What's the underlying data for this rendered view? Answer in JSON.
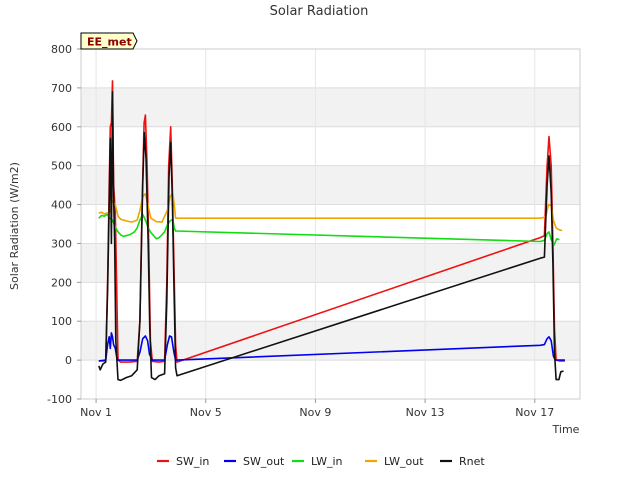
{
  "chart_data": {
    "type": "line",
    "title": "Solar Radiation",
    "xlabel": "Time",
    "ylabel": "Solar Radiation (W/m2)",
    "badge": "EE_met",
    "xlim": [
      0.45,
      18.65
    ],
    "ylim": [
      -100,
      800
    ],
    "x_unit": "day of November",
    "x_ticks": [
      {
        "x": 1,
        "label": "Nov 1"
      },
      {
        "x": 5,
        "label": "Nov 5"
      },
      {
        "x": 9,
        "label": "Nov 9"
      },
      {
        "x": 13,
        "label": "Nov 13"
      },
      {
        "x": 17,
        "label": "Nov 17"
      }
    ],
    "y_ticks": [
      -100,
      0,
      100,
      200,
      300,
      400,
      500,
      600,
      700,
      800
    ],
    "grid": true,
    "legend_position": "bottom",
    "series": [
      {
        "name": "SW_in",
        "color": "#ee1111",
        "points": [
          [
            1.1,
            -2
          ],
          [
            1.35,
            -2
          ],
          [
            1.42,
            200
          ],
          [
            1.48,
            450
          ],
          [
            1.52,
            600
          ],
          [
            1.56,
            610
          ],
          [
            1.6,
            718
          ],
          [
            1.64,
            450
          ],
          [
            1.7,
            380
          ],
          [
            1.75,
            200
          ],
          [
            1.8,
            0
          ],
          [
            1.9,
            -5
          ],
          [
            2.2,
            -5
          ],
          [
            2.5,
            -3
          ],
          [
            2.6,
            100
          ],
          [
            2.68,
            400
          ],
          [
            2.75,
            610
          ],
          [
            2.8,
            630
          ],
          [
            2.86,
            500
          ],
          [
            2.92,
            300
          ],
          [
            2.98,
            50
          ],
          [
            3.05,
            -3
          ],
          [
            3.3,
            -5
          ],
          [
            3.5,
            -3
          ],
          [
            3.58,
            200
          ],
          [
            3.65,
            500
          ],
          [
            3.72,
            600
          ],
          [
            3.78,
            450
          ],
          [
            3.84,
            250
          ],
          [
            3.9,
            40
          ],
          [
            3.95,
            -5
          ],
          [
            17.2,
            315
          ],
          [
            17.35,
            320
          ],
          [
            17.45,
            500
          ],
          [
            17.52,
            575
          ],
          [
            17.6,
            500
          ],
          [
            17.66,
            300
          ],
          [
            17.72,
            80
          ],
          [
            17.78,
            0
          ],
          [
            17.9,
            -2
          ],
          [
            18.1,
            -2
          ]
        ]
      },
      {
        "name": "SW_out",
        "color": "#0000ee",
        "points": [
          [
            1.1,
            -2
          ],
          [
            1.35,
            0
          ],
          [
            1.42,
            40
          ],
          [
            1.48,
            60
          ],
          [
            1.52,
            30
          ],
          [
            1.56,
            70
          ],
          [
            1.6,
            60
          ],
          [
            1.64,
            40
          ],
          [
            1.7,
            30
          ],
          [
            1.75,
            10
          ],
          [
            1.8,
            0
          ],
          [
            2.2,
            0
          ],
          [
            2.5,
            0
          ],
          [
            2.6,
            20
          ],
          [
            2.7,
            55
          ],
          [
            2.8,
            62
          ],
          [
            2.88,
            50
          ],
          [
            2.95,
            15
          ],
          [
            3.05,
            0
          ],
          [
            3.5,
            0
          ],
          [
            3.6,
            40
          ],
          [
            3.68,
            62
          ],
          [
            3.75,
            60
          ],
          [
            3.84,
            20
          ],
          [
            3.9,
            0
          ],
          [
            3.95,
            0
          ],
          [
            17.2,
            38
          ],
          [
            17.35,
            40
          ],
          [
            17.45,
            55
          ],
          [
            17.52,
            60
          ],
          [
            17.6,
            50
          ],
          [
            17.68,
            10
          ],
          [
            17.75,
            0
          ],
          [
            18.1,
            0
          ]
        ]
      },
      {
        "name": "LW_in",
        "color": "#11dd11",
        "points": [
          [
            1.1,
            365
          ],
          [
            1.2,
            372
          ],
          [
            1.3,
            370
          ],
          [
            1.4,
            375
          ],
          [
            1.5,
            365
          ],
          [
            1.6,
            360
          ],
          [
            1.7,
            342
          ],
          [
            1.8,
            330
          ],
          [
            1.9,
            322
          ],
          [
            2.0,
            318
          ],
          [
            2.1,
            320
          ],
          [
            2.2,
            322
          ],
          [
            2.3,
            325
          ],
          [
            2.4,
            330
          ],
          [
            2.5,
            340
          ],
          [
            2.6,
            360
          ],
          [
            2.7,
            375
          ],
          [
            2.8,
            360
          ],
          [
            2.9,
            340
          ],
          [
            3.0,
            328
          ],
          [
            3.1,
            320
          ],
          [
            3.2,
            312
          ],
          [
            3.3,
            315
          ],
          [
            3.4,
            322
          ],
          [
            3.5,
            330
          ],
          [
            3.6,
            348
          ],
          [
            3.7,
            358
          ],
          [
            3.8,
            362
          ],
          [
            3.85,
            340
          ],
          [
            3.9,
            332
          ],
          [
            17.2,
            305
          ],
          [
            17.35,
            308
          ],
          [
            17.45,
            325
          ],
          [
            17.52,
            330
          ],
          [
            17.6,
            310
          ],
          [
            17.7,
            296
          ],
          [
            17.8,
            312
          ],
          [
            17.9,
            310
          ]
        ]
      },
      {
        "name": "LW_out",
        "color": "#f0a500",
        "points": [
          [
            1.1,
            378
          ],
          [
            1.2,
            380
          ],
          [
            1.3,
            376
          ],
          [
            1.4,
            378
          ],
          [
            1.5,
            380
          ],
          [
            1.6,
            410
          ],
          [
            1.7,
            400
          ],
          [
            1.8,
            370
          ],
          [
            1.9,
            362
          ],
          [
            2.1,
            358
          ],
          [
            2.3,
            355
          ],
          [
            2.5,
            360
          ],
          [
            2.6,
            385
          ],
          [
            2.7,
            420
          ],
          [
            2.8,
            428
          ],
          [
            2.9,
            395
          ],
          [
            3.0,
            365
          ],
          [
            3.2,
            356
          ],
          [
            3.4,
            355
          ],
          [
            3.6,
            385
          ],
          [
            3.7,
            420
          ],
          [
            3.8,
            430
          ],
          [
            3.85,
            400
          ],
          [
            3.9,
            365
          ],
          [
            17.2,
            365
          ],
          [
            17.4,
            368
          ],
          [
            17.5,
            400
          ],
          [
            17.6,
            398
          ],
          [
            17.68,
            360
          ],
          [
            17.78,
            340
          ],
          [
            17.9,
            335
          ],
          [
            18.0,
            333
          ]
        ]
      },
      {
        "name": "Rnet",
        "color": "#111111",
        "points": [
          [
            1.1,
            -15
          ],
          [
            1.15,
            -25
          ],
          [
            1.25,
            -10
          ],
          [
            1.35,
            -5
          ],
          [
            1.42,
            180
          ],
          [
            1.48,
            400
          ],
          [
            1.52,
            570
          ],
          [
            1.56,
            300
          ],
          [
            1.6,
            690
          ],
          [
            1.64,
            420
          ],
          [
            1.68,
            300
          ],
          [
            1.72,
            50
          ],
          [
            1.8,
            -50
          ],
          [
            1.9,
            -52
          ],
          [
            2.1,
            -45
          ],
          [
            2.3,
            -40
          ],
          [
            2.5,
            -25
          ],
          [
            2.6,
            100
          ],
          [
            2.7,
            450
          ],
          [
            2.76,
            585
          ],
          [
            2.82,
            520
          ],
          [
            2.9,
            300
          ],
          [
            2.96,
            80
          ],
          [
            3.02,
            -45
          ],
          [
            3.15,
            -50
          ],
          [
            3.3,
            -40
          ],
          [
            3.5,
            -35
          ],
          [
            3.58,
            150
          ],
          [
            3.66,
            470
          ],
          [
            3.72,
            560
          ],
          [
            3.78,
            420
          ],
          [
            3.84,
            200
          ],
          [
            3.9,
            -20
          ],
          [
            3.95,
            -40
          ],
          [
            17.2,
            262
          ],
          [
            17.35,
            265
          ],
          [
            17.45,
            450
          ],
          [
            17.52,
            525
          ],
          [
            17.6,
            430
          ],
          [
            17.66,
            250
          ],
          [
            17.72,
            20
          ],
          [
            17.78,
            -50
          ],
          [
            17.88,
            -50
          ],
          [
            17.95,
            -30
          ],
          [
            18.05,
            -28
          ]
        ]
      }
    ]
  }
}
